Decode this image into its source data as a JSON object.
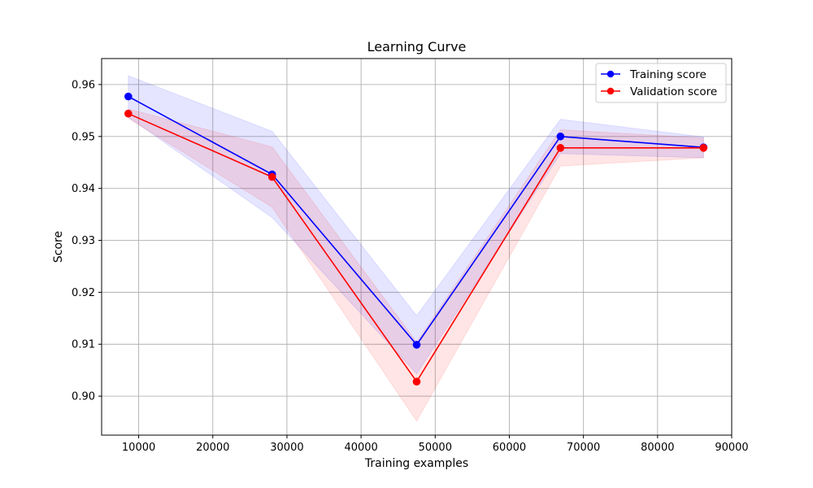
{
  "chart_data": {
    "type": "line",
    "title": "Learning Curve",
    "xlabel": "Training examples",
    "ylabel": "Score",
    "xlim": [
      5000,
      90000
    ],
    "ylim": [
      0.8925,
      0.965
    ],
    "grid": true,
    "legend_placement": "top-right",
    "x_ticks": [
      10000,
      20000,
      30000,
      40000,
      50000,
      60000,
      70000,
      80000,
      90000
    ],
    "x_tick_labels": [
      "10000",
      "20000",
      "30000",
      "40000",
      "50000",
      "60000",
      "70000",
      "80000",
      "90000"
    ],
    "y_ticks": [
      0.9,
      0.91,
      0.92,
      0.93,
      0.94,
      0.95,
      0.96
    ],
    "y_tick_labels": [
      "0.90",
      "0.91",
      "0.92",
      "0.93",
      "0.94",
      "0.95",
      "0.96"
    ],
    "x": [
      8600,
      28000,
      47500,
      66900,
      86200
    ],
    "series": [
      {
        "name": "Training score",
        "color": "#0000ff",
        "values": [
          0.9577,
          0.9427,
          0.9099,
          0.95,
          0.9479
        ],
        "band_lower": [
          0.9537,
          0.9344,
          0.9043,
          0.9467,
          0.9459
        ],
        "band_upper": [
          0.9617,
          0.951,
          0.9155,
          0.9533,
          0.9499
        ]
      },
      {
        "name": "Validation score",
        "color": "#ff0000",
        "values": [
          0.9544,
          0.9422,
          0.9028,
          0.9478,
          0.9478
        ],
        "band_lower": [
          0.9535,
          0.9364,
          0.8952,
          0.9443,
          0.9459
        ],
        "band_upper": [
          0.9553,
          0.948,
          0.9104,
          0.9513,
          0.9497
        ]
      }
    ]
  }
}
